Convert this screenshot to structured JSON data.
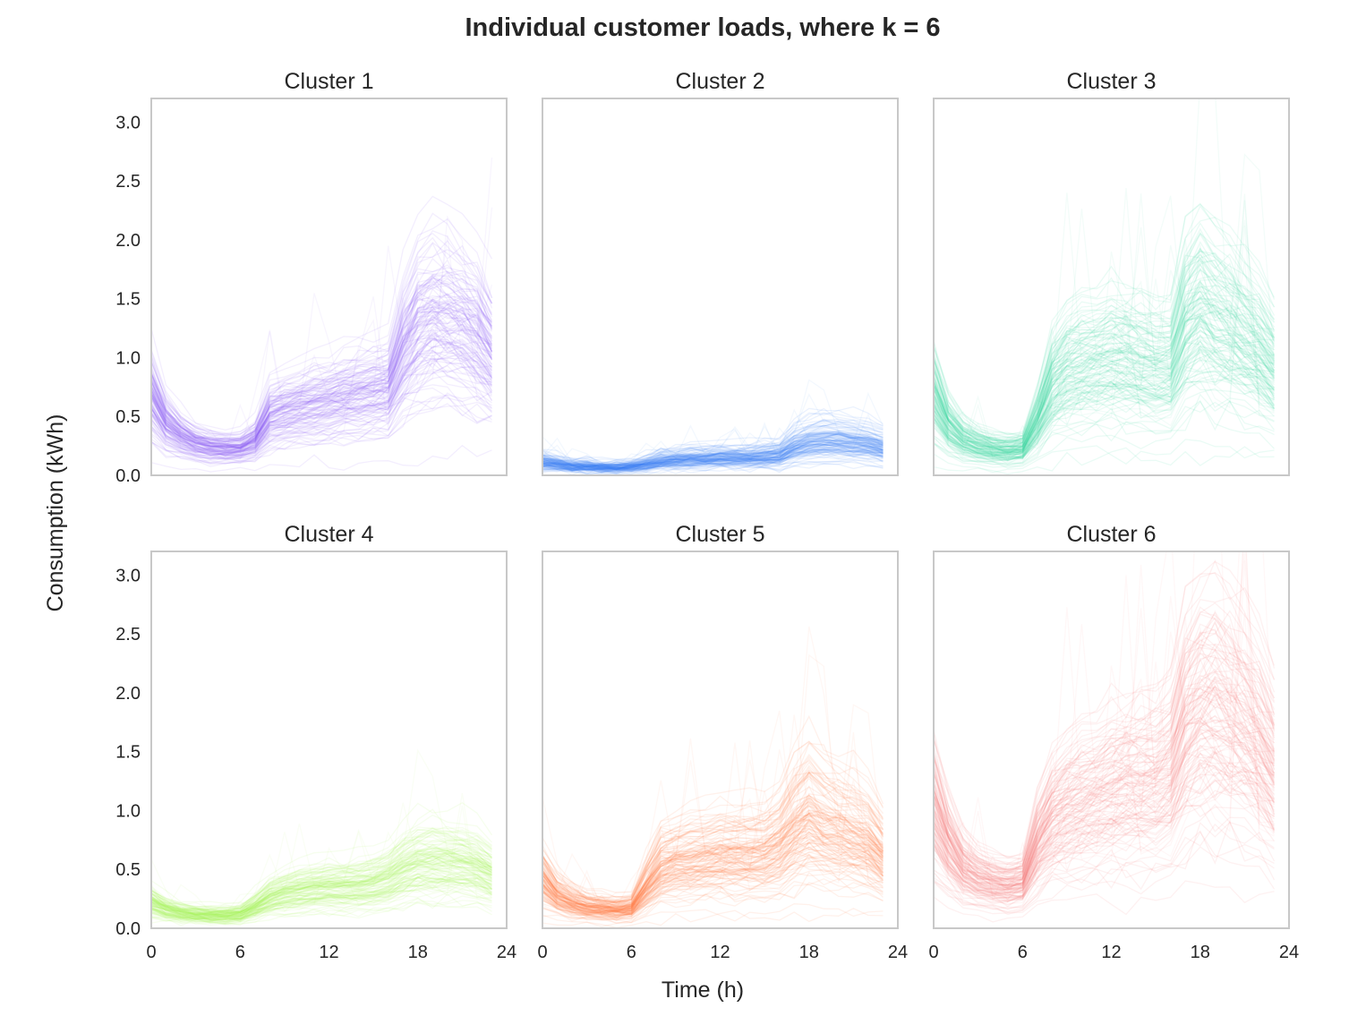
{
  "chart_data": {
    "type": "line",
    "title": "Individual customer loads, where k = 6",
    "xlabel": "Time (h)",
    "ylabel": "Consumption (kWh)",
    "xlim": [
      0,
      24
    ],
    "ylim": [
      0,
      3.2
    ],
    "xticks": [
      0,
      6,
      12,
      18,
      24
    ],
    "yticks": [
      0.0,
      0.5,
      1.0,
      1.5,
      2.0,
      2.5,
      3.0
    ],
    "xtick_labels": [
      "0",
      "6",
      "12",
      "18",
      "24"
    ],
    "ytick_labels": [
      "0.0",
      "0.5",
      "1.0",
      "1.5",
      "2.0",
      "2.5",
      "3.0"
    ],
    "grid": false,
    "hours": [
      0,
      1,
      2,
      3,
      4,
      5,
      6,
      7,
      8,
      9,
      10,
      11,
      12,
      13,
      14,
      15,
      16,
      17,
      18,
      19,
      20,
      21,
      22,
      23
    ],
    "panels": [
      {
        "title": "Cluster 1",
        "color": "#8b5cf6",
        "typical_profile": [
          0.65,
          0.42,
          0.32,
          0.26,
          0.23,
          0.22,
          0.22,
          0.28,
          0.48,
          0.52,
          0.55,
          0.58,
          0.6,
          0.63,
          0.66,
          0.68,
          0.7,
          1.0,
          1.2,
          1.28,
          1.25,
          1.2,
          1.12,
          0.95
        ]
      },
      {
        "title": "Cluster 2",
        "color": "#3b82f6",
        "typical_profile": [
          0.12,
          0.1,
          0.08,
          0.08,
          0.07,
          0.07,
          0.08,
          0.1,
          0.13,
          0.14,
          0.15,
          0.15,
          0.16,
          0.16,
          0.16,
          0.17,
          0.18,
          0.26,
          0.3,
          0.32,
          0.31,
          0.3,
          0.28,
          0.25
        ]
      },
      {
        "title": "Cluster 3",
        "color": "#34d399",
        "typical_profile": [
          0.68,
          0.42,
          0.3,
          0.25,
          0.22,
          0.21,
          0.22,
          0.45,
          0.75,
          0.88,
          0.92,
          0.95,
          0.98,
          0.96,
          0.93,
          0.9,
          0.9,
          1.25,
          1.38,
          1.3,
          1.22,
          1.12,
          1.02,
          0.88
        ]
      },
      {
        "title": "Cluster 4",
        "color": "#a3f55c",
        "typical_profile": [
          0.22,
          0.16,
          0.13,
          0.12,
          0.11,
          0.11,
          0.12,
          0.18,
          0.26,
          0.3,
          0.32,
          0.34,
          0.35,
          0.35,
          0.36,
          0.38,
          0.42,
          0.5,
          0.56,
          0.57,
          0.56,
          0.55,
          0.52,
          0.45
        ]
      },
      {
        "title": "Cluster 5",
        "color": "#ff7a3d",
        "typical_profile": [
          0.42,
          0.28,
          0.22,
          0.18,
          0.17,
          0.16,
          0.17,
          0.35,
          0.52,
          0.56,
          0.58,
          0.6,
          0.62,
          0.62,
          0.62,
          0.63,
          0.7,
          0.85,
          0.95,
          0.88,
          0.82,
          0.78,
          0.72,
          0.6
        ]
      },
      {
        "title": "Cluster 6",
        "color": "#f87171",
        "typical_profile": [
          1.0,
          0.7,
          0.5,
          0.42,
          0.38,
          0.36,
          0.38,
          0.7,
          0.9,
          1.0,
          1.05,
          1.1,
          1.15,
          1.18,
          1.2,
          1.22,
          1.3,
          1.65,
          1.8,
          1.85,
          1.75,
          1.65,
          1.5,
          1.3
        ]
      }
    ]
  }
}
